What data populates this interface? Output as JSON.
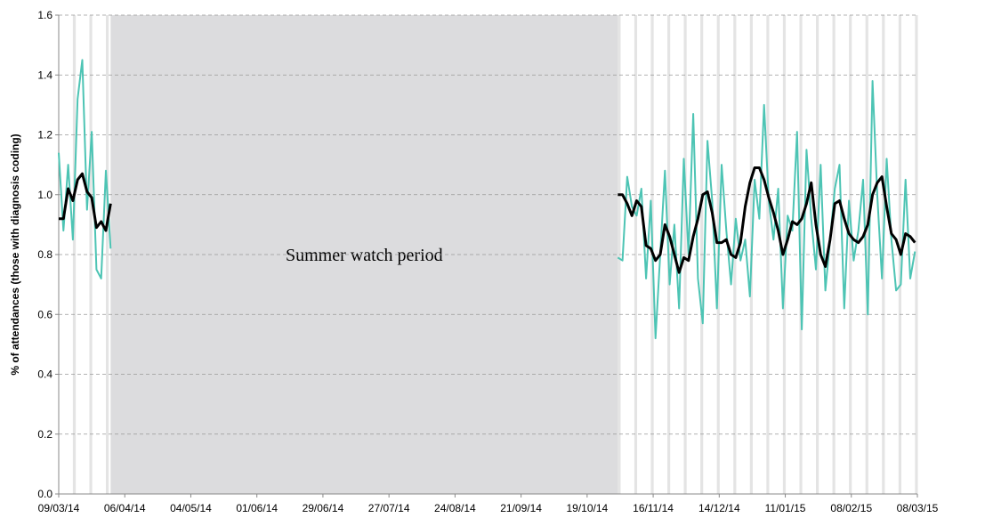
{
  "chart_data": {
    "type": "line",
    "y_label": "% of attendances (those with diagnosis coding)",
    "shaded": {
      "label": "Summer watch period",
      "x": [
        "31/03/14",
        "01/11/14"
      ],
      "color": "#dcdcde"
    },
    "x": [
      "09/03/14",
      "11/03/14",
      "13/03/14",
      "15/03/14",
      "17/03/14",
      "19/03/14",
      "21/03/14",
      "23/03/14",
      "25/03/14",
      "27/03/14",
      "29/03/14",
      "31/03/14",
      "02/04/14",
      "01/11/14",
      "03/11/14",
      "05/11/14",
      "07/11/14",
      "09/11/14",
      "11/11/14",
      "13/11/14",
      "15/11/14",
      "17/11/14",
      "19/11/14",
      "21/11/14",
      "23/11/14",
      "25/11/14",
      "27/11/14",
      "29/11/14",
      "01/12/14",
      "03/12/14",
      "05/12/14",
      "07/12/14",
      "09/12/14",
      "11/12/14",
      "13/12/14",
      "15/12/14",
      "17/12/14",
      "19/12/14",
      "21/12/14",
      "23/12/14",
      "25/12/14",
      "27/12/14",
      "29/12/14",
      "31/12/14",
      "02/01/15",
      "04/01/15",
      "06/01/15",
      "08/01/15",
      "10/01/15",
      "12/01/15",
      "14/01/15",
      "16/01/15",
      "18/01/15",
      "20/01/15",
      "22/01/15",
      "24/01/15",
      "26/01/15",
      "28/01/15",
      "30/01/15",
      "01/02/15",
      "03/02/15",
      "05/02/15",
      "07/02/15",
      "09/02/15",
      "11/02/15",
      "13/02/15",
      "15/02/15",
      "17/02/15",
      "19/02/15",
      "21/02/15",
      "23/02/15",
      "25/02/15",
      "27/02/15",
      "01/03/15",
      "03/03/15",
      "05/03/15",
      "07/03/15"
    ],
    "series": [
      {
        "color": "#4dc4b4",
        "width": 2,
        "values": [
          1.14,
          0.88,
          1.1,
          0.85,
          1.32,
          1.45,
          0.95,
          1.21,
          0.75,
          0.72,
          1.08,
          0.82,
          null,
          0.79,
          0.78,
          1.06,
          0.96,
          0.93,
          1.02,
          0.72,
          0.98,
          0.52,
          0.8,
          1.08,
          0.7,
          0.9,
          0.62,
          1.12,
          0.8,
          1.27,
          0.72,
          0.57,
          1.18,
          0.98,
          0.62,
          1.1,
          0.88,
          0.7,
          0.92,
          0.78,
          0.85,
          0.66,
          1.05,
          0.92,
          1.3,
          0.98,
          0.85,
          1.02,
          0.62,
          0.93,
          0.88,
          1.21,
          0.55,
          1.15,
          0.92,
          0.75,
          1.1,
          0.68,
          0.85,
          1.02,
          1.1,
          0.62,
          0.98,
          0.78,
          0.88,
          1.05,
          0.6,
          1.38,
          1.0,
          0.72,
          1.12,
          0.85,
          0.68,
          0.7,
          1.05,
          0.72,
          0.81
        ]
      },
      {
        "color": "#000000",
        "width": 3,
        "values": [
          0.92,
          0.92,
          1.02,
          0.98,
          1.05,
          1.07,
          1.01,
          0.99,
          0.89,
          0.91,
          0.88,
          0.97,
          null,
          1.0,
          1.0,
          0.97,
          0.93,
          0.98,
          0.96,
          0.83,
          0.82,
          0.78,
          0.8,
          0.9,
          0.86,
          0.8,
          0.74,
          0.79,
          0.78,
          0.86,
          0.92,
          1.0,
          1.01,
          0.94,
          0.84,
          0.84,
          0.85,
          0.8,
          0.79,
          0.84,
          0.96,
          1.04,
          1.09,
          1.09,
          1.05,
          0.99,
          0.94,
          0.88,
          0.8,
          0.85,
          0.91,
          0.9,
          0.92,
          0.97,
          1.04,
          0.9,
          0.8,
          0.76,
          0.85,
          0.97,
          0.98,
          0.92,
          0.87,
          0.85,
          0.84,
          0.86,
          0.9,
          1.0,
          1.04,
          1.06,
          0.96,
          0.87,
          0.85,
          0.8,
          0.87,
          0.86,
          0.84
        ]
      }
    ],
    "xlim": [
      "09/03/14",
      "08/03/15"
    ],
    "xticks": [
      "09/03/14",
      "06/04/14",
      "04/05/14",
      "01/06/14",
      "29/06/14",
      "27/07/14",
      "24/08/14",
      "21/09/14",
      "19/10/14",
      "16/11/14",
      "14/12/14",
      "11/01/15",
      "08/02/15",
      "08/03/15"
    ],
    "ylim": [
      0,
      1.6
    ],
    "yticks": [
      {
        "value": 0,
        "label": "0.0"
      },
      0.2,
      0.4,
      0.6,
      0.8,
      {
        "value": 1,
        "label": "1.0"
      },
      1.2,
      1.4,
      1.6
    ],
    "grid": true
  }
}
